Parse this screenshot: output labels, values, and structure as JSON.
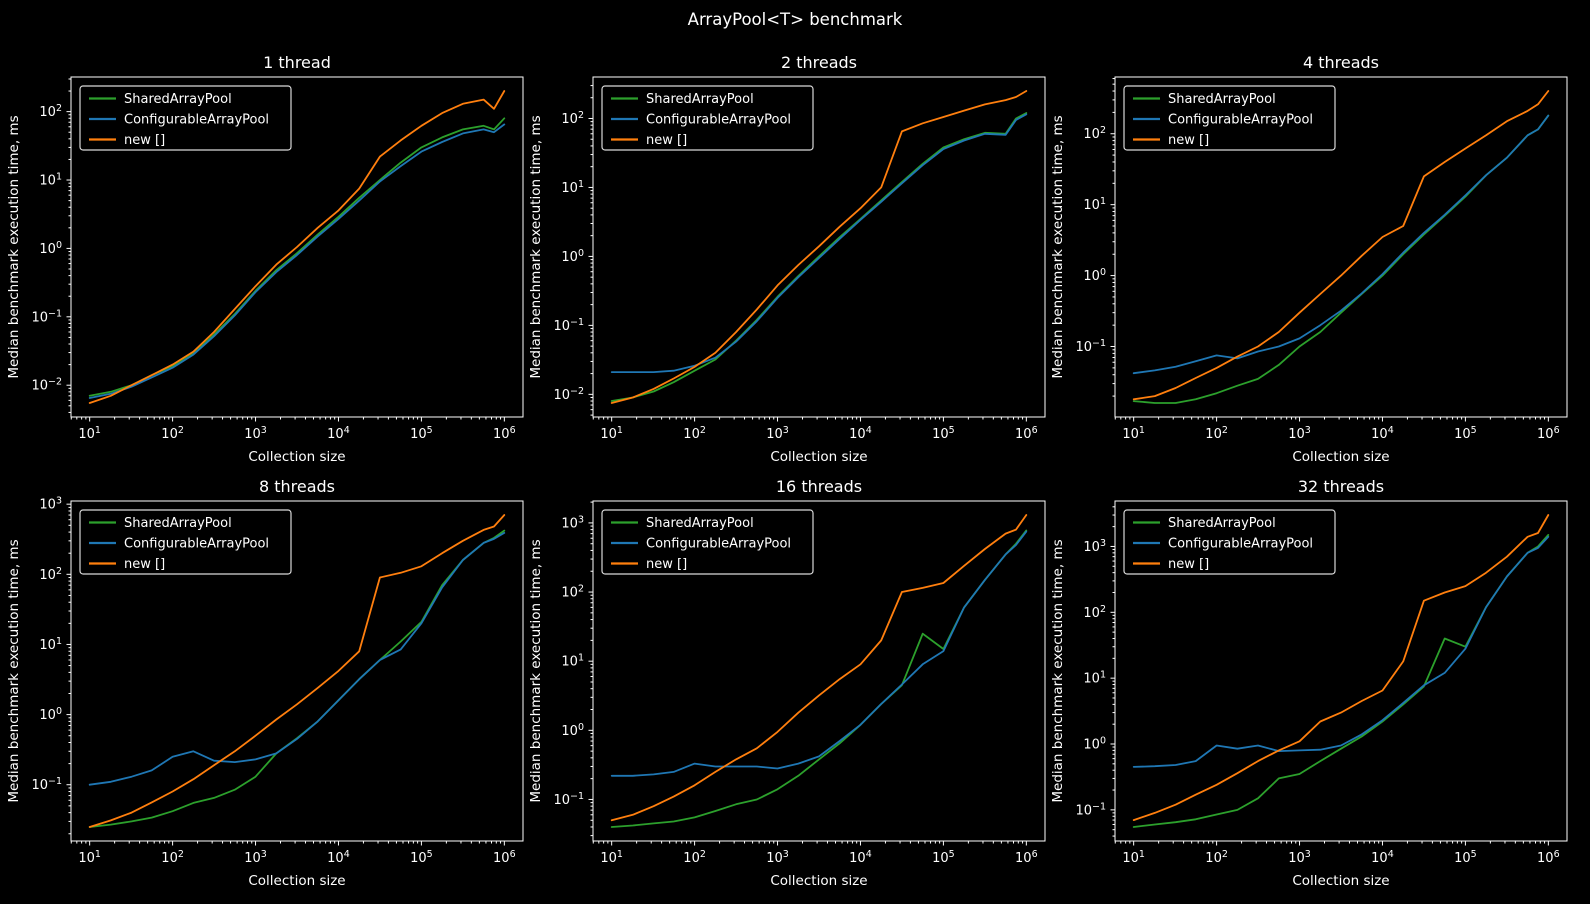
{
  "figure": {
    "title": "ArrayPool<T> benchmark",
    "background_color": "#000000",
    "text_color": "#ffffff",
    "spine_color": "#ffffff"
  },
  "legend": {
    "entries": [
      "SharedArrayPool",
      "ConfigurableArrayPool",
      "new []"
    ],
    "position": "upper left",
    "border_color": "#d9d9d9",
    "face_color": "#000000"
  },
  "series_colors": {
    "SharedArrayPool": "#2ca02c",
    "ConfigurableArrayPool": "#1f77b4",
    "new []": "#ff7f0e"
  },
  "chart_data": [
    {
      "type": "line",
      "title": "1 thread",
      "xlabel": "Collection size",
      "ylabel": "Median benchmark execution time, ms",
      "xscale": "log",
      "yscale": "log",
      "xlim": [
        10,
        1000000
      ],
      "ylim": [
        0.0034,
        330
      ],
      "xticks": [
        "10^1",
        "10^2",
        "10^3",
        "10^4",
        "10^5",
        "10^6"
      ],
      "yticks": [
        "10^-2",
        "10^-1",
        "10^0",
        "10^1",
        "10^2"
      ],
      "grid": false,
      "legend_position": "upper left",
      "x": [
        10,
        18,
        32,
        56,
        100,
        178,
        316,
        562,
        1000,
        1778,
        3162,
        5623,
        10000,
        17783,
        31623,
        56234,
        100000,
        177828,
        316228,
        562341,
        750000,
        1000000
      ],
      "series": [
        {
          "name": "SharedArrayPool",
          "color": "#2ca02c",
          "values": [
            0.007,
            0.008,
            0.01,
            0.014,
            0.019,
            0.029,
            0.055,
            0.11,
            0.24,
            0.48,
            0.85,
            1.6,
            2.9,
            5.5,
            10,
            18,
            30,
            42,
            55,
            62,
            55,
            80
          ]
        },
        {
          "name": "ConfigurableArrayPool",
          "color": "#1f77b4",
          "values": [
            0.0065,
            0.0075,
            0.0095,
            0.013,
            0.018,
            0.028,
            0.052,
            0.105,
            0.23,
            0.45,
            0.8,
            1.5,
            2.7,
            5.0,
            9.5,
            16,
            26,
            36,
            48,
            55,
            50,
            65
          ]
        },
        {
          "name": "new []",
          "color": "#ff7f0e",
          "values": [
            0.0055,
            0.007,
            0.01,
            0.014,
            0.02,
            0.031,
            0.06,
            0.13,
            0.28,
            0.58,
            1.05,
            2.0,
            3.6,
            7.5,
            22,
            38,
            62,
            95,
            130,
            150,
            110,
            200
          ]
        }
      ]
    },
    {
      "type": "line",
      "title": "2 threads",
      "xlabel": "Collection size",
      "ylabel": "Median benchmark execution time, ms",
      "xscale": "log",
      "yscale": "log",
      "xlim": [
        10,
        1000000
      ],
      "ylim": [
        0.005,
        380
      ],
      "xticks": [
        "10^1",
        "10^2",
        "10^3",
        "10^4",
        "10^5",
        "10^6"
      ],
      "yticks": [
        "10^-2",
        "10^-1",
        "10^0",
        "10^1",
        "10^2"
      ],
      "grid": false,
      "legend_position": "upper left",
      "x": [
        10,
        18,
        32,
        56,
        100,
        178,
        316,
        562,
        1000,
        1778,
        3162,
        5623,
        10000,
        17783,
        31623,
        56234,
        100000,
        177828,
        316228,
        562341,
        750000,
        1000000
      ],
      "series": [
        {
          "name": "SharedArrayPool",
          "color": "#2ca02c",
          "values": [
            0.008,
            0.009,
            0.011,
            0.015,
            0.022,
            0.032,
            0.06,
            0.12,
            0.26,
            0.52,
            1.0,
            1.9,
            3.5,
            6.5,
            12,
            22,
            38,
            50,
            62,
            60,
            100,
            120
          ]
        },
        {
          "name": "ConfigurableArrayPool",
          "color": "#1f77b4",
          "values": [
            0.021,
            0.021,
            0.021,
            0.022,
            0.026,
            0.034,
            0.058,
            0.115,
            0.25,
            0.5,
            0.95,
            1.8,
            3.4,
            6.2,
            11.5,
            21,
            36,
            48,
            60,
            58,
            95,
            115
          ]
        },
        {
          "name": "new []",
          "color": "#ff7f0e",
          "values": [
            0.0075,
            0.009,
            0.012,
            0.017,
            0.025,
            0.04,
            0.08,
            0.17,
            0.38,
            0.75,
            1.4,
            2.7,
            5.0,
            10,
            65,
            85,
            105,
            130,
            160,
            185,
            205,
            250
          ]
        }
      ]
    },
    {
      "type": "line",
      "title": "4 threads",
      "xlabel": "Collection size",
      "ylabel": "Median benchmark execution time, ms",
      "xscale": "log",
      "yscale": "log",
      "xlim": [
        10,
        1000000
      ],
      "ylim": [
        0.009,
        600
      ],
      "xticks": [
        "10^1",
        "10^2",
        "10^3",
        "10^4",
        "10^5",
        "10^6"
      ],
      "yticks": [
        "10^-2",
        "10^-1",
        "10^0",
        "10^1",
        "10^2"
      ],
      "grid": false,
      "legend_position": "upper left",
      "x": [
        10,
        18,
        32,
        56,
        100,
        178,
        316,
        562,
        1000,
        1778,
        3162,
        5623,
        10000,
        17783,
        31623,
        56234,
        100000,
        177828,
        316228,
        562341,
        750000,
        1000000
      ],
      "series": [
        {
          "name": "SharedArrayPool",
          "color": "#2ca02c",
          "values": [
            0.017,
            0.016,
            0.016,
            0.018,
            0.022,
            0.028,
            0.035,
            0.055,
            0.1,
            0.16,
            0.3,
            0.55,
            1.0,
            2.0,
            3.8,
            7.0,
            13,
            26,
            46,
            95,
            115,
            180
          ]
        },
        {
          "name": "ConfigurableArrayPool",
          "color": "#1f77b4",
          "values": [
            0.042,
            0.046,
            0.052,
            0.062,
            0.075,
            0.068,
            0.085,
            0.1,
            0.13,
            0.2,
            0.32,
            0.56,
            1.05,
            2.1,
            4.0,
            7.2,
            13.5,
            26,
            46,
            95,
            115,
            180
          ]
        },
        {
          "name": "new []",
          "color": "#ff7f0e",
          "values": [
            0.018,
            0.02,
            0.026,
            0.036,
            0.05,
            0.072,
            0.1,
            0.16,
            0.3,
            0.55,
            1.0,
            1.9,
            3.5,
            5.0,
            25,
            40,
            62,
            95,
            150,
            210,
            260,
            400
          ]
        }
      ]
    },
    {
      "type": "line",
      "title": "8 threads",
      "xlabel": "Collection size",
      "ylabel": "Median benchmark execution time, ms",
      "xscale": "log",
      "yscale": "log",
      "xlim": [
        10,
        1000000
      ],
      "ylim": [
        0.015,
        1500
      ],
      "xticks": [
        "10^1",
        "10^2",
        "10^3",
        "10^4",
        "10^5",
        "10^6"
      ],
      "yticks": [
        "10^-1",
        "10^0",
        "10^1",
        "10^2",
        "10^3"
      ],
      "grid": false,
      "legend_position": "upper left",
      "x": [
        10,
        18,
        32,
        56,
        100,
        178,
        316,
        562,
        1000,
        1778,
        3162,
        5623,
        10000,
        17783,
        31623,
        56234,
        100000,
        177828,
        316228,
        562341,
        750000,
        1000000
      ],
      "series": [
        {
          "name": "SharedArrayPool",
          "color": "#2ca02c",
          "values": [
            0.025,
            0.027,
            0.03,
            0.034,
            0.042,
            0.055,
            0.065,
            0.085,
            0.13,
            0.28,
            0.46,
            0.8,
            1.6,
            3.2,
            6.0,
            11,
            21,
            70,
            160,
            280,
            330,
            420
          ]
        },
        {
          "name": "ConfigurableArrayPool",
          "color": "#1f77b4",
          "values": [
            0.1,
            0.11,
            0.13,
            0.16,
            0.25,
            0.3,
            0.22,
            0.21,
            0.23,
            0.28,
            0.45,
            0.8,
            1.6,
            3.2,
            6.0,
            8.5,
            20,
            65,
            160,
            280,
            320,
            390
          ]
        },
        {
          "name": "new []",
          "color": "#ff7f0e",
          "values": [
            0.025,
            0.031,
            0.04,
            0.056,
            0.08,
            0.12,
            0.19,
            0.3,
            0.5,
            0.85,
            1.4,
            2.4,
            4.2,
            8.0,
            90,
            105,
            130,
            200,
            300,
            430,
            480,
            700
          ]
        }
      ]
    },
    {
      "type": "line",
      "title": "16 threads",
      "xlabel": "Collection size",
      "ylabel": "Median benchmark execution time, ms",
      "xscale": "log",
      "yscale": "log",
      "xlim": [
        10,
        1000000
      ],
      "ylim": [
        0.025,
        2600
      ],
      "xticks": [
        "10^1",
        "10^2",
        "10^3",
        "10^4",
        "10^5",
        "10^6"
      ],
      "yticks": [
        "10^-1",
        "10^0",
        "10^1",
        "10^2",
        "10^3"
      ],
      "grid": false,
      "legend_position": "upper left",
      "x": [
        10,
        18,
        32,
        56,
        100,
        178,
        316,
        562,
        1000,
        1778,
        3162,
        5623,
        10000,
        17783,
        31623,
        56234,
        100000,
        177828,
        316228,
        562341,
        750000,
        1000000
      ],
      "series": [
        {
          "name": "SharedArrayPool",
          "color": "#2ca02c",
          "values": [
            0.04,
            0.042,
            0.045,
            0.048,
            0.055,
            0.068,
            0.085,
            0.1,
            0.14,
            0.22,
            0.38,
            0.65,
            1.2,
            2.4,
            4.5,
            25,
            15,
            60,
            150,
            350,
            500,
            780
          ]
        },
        {
          "name": "ConfigurableArrayPool",
          "color": "#1f77b4",
          "values": [
            0.22,
            0.22,
            0.23,
            0.25,
            0.33,
            0.3,
            0.3,
            0.3,
            0.28,
            0.33,
            0.42,
            0.7,
            1.2,
            2.4,
            4.6,
            9.0,
            14,
            60,
            150,
            350,
            480,
            750
          ]
        },
        {
          "name": "new []",
          "color": "#ff7f0e",
          "values": [
            0.05,
            0.06,
            0.08,
            0.11,
            0.16,
            0.25,
            0.38,
            0.55,
            0.95,
            1.8,
            3.2,
            5.5,
            9.0,
            20,
            100,
            115,
            135,
            240,
            420,
            700,
            800,
            1300
          ]
        }
      ]
    },
    {
      "type": "line",
      "title": "32 threads",
      "xlabel": "Collection size",
      "ylabel": "Median benchmark execution time, ms",
      "xscale": "log",
      "yscale": "log",
      "xlim": [
        10,
        1000000
      ],
      "ylim": [
        0.033,
        5000
      ],
      "xticks": [
        "10^1",
        "10^2",
        "10^3",
        "10^4",
        "10^5",
        "10^6"
      ],
      "yticks": [
        "10^-1",
        "10^0",
        "10^1",
        "10^2",
        "10^3"
      ],
      "grid": false,
      "legend_position": "upper left",
      "x": [
        10,
        18,
        32,
        56,
        100,
        178,
        316,
        562,
        1000,
        1778,
        3162,
        5623,
        10000,
        17783,
        31623,
        56234,
        100000,
        177828,
        316228,
        562341,
        750000,
        1000000
      ],
      "series": [
        {
          "name": "SharedArrayPool",
          "color": "#2ca02c",
          "values": [
            0.055,
            0.06,
            0.065,
            0.072,
            0.085,
            0.1,
            0.15,
            0.3,
            0.35,
            0.55,
            0.85,
            1.3,
            2.2,
            4.0,
            7.5,
            40,
            30,
            120,
            350,
            800,
            1000,
            1500
          ]
        },
        {
          "name": "ConfigurableArrayPool",
          "color": "#1f77b4",
          "values": [
            0.45,
            0.46,
            0.48,
            0.55,
            0.95,
            0.85,
            0.95,
            0.78,
            0.8,
            0.82,
            0.95,
            1.4,
            2.3,
            4.2,
            7.8,
            12,
            28,
            120,
            350,
            800,
            950,
            1400
          ]
        },
        {
          "name": "new []",
          "color": "#ff7f0e",
          "values": [
            0.07,
            0.09,
            0.12,
            0.17,
            0.24,
            0.36,
            0.55,
            0.8,
            1.1,
            2.2,
            3.0,
            4.5,
            6.5,
            18,
            150,
            200,
            250,
            400,
            700,
            1400,
            1600,
            3000
          ]
        }
      ]
    }
  ]
}
